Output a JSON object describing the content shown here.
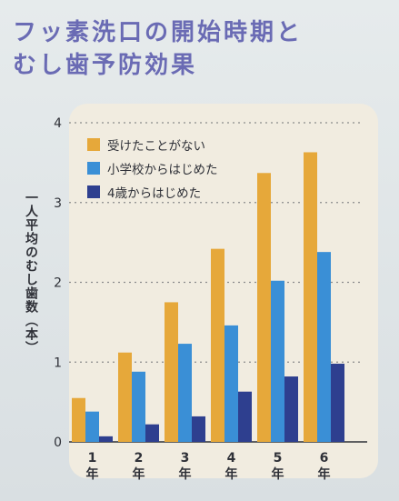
{
  "title": {
    "line1": "フッ素洗口の開始時期と",
    "line2": "むし歯予防効果"
  },
  "chart_data": {
    "type": "bar",
    "ylabel": "一人平均のむし歯数（本）",
    "categories": [
      "1年",
      "2年",
      "3年",
      "4年",
      "5年",
      "6年"
    ],
    "category_numbers": [
      "1",
      "2",
      "3",
      "4",
      "5",
      "6"
    ],
    "category_suffix": "年",
    "ylim": [
      0,
      4
    ],
    "yticks": [
      0,
      1,
      2,
      3,
      4
    ],
    "grid": true,
    "legend_position": "top-left",
    "series": [
      {
        "name": "受けたことがない",
        "color": "#e6a83a",
        "values": [
          0.55,
          1.12,
          1.75,
          2.42,
          3.37,
          3.63
        ]
      },
      {
        "name": "小学校からはじめた",
        "color": "#3a8fd6",
        "values": [
          0.38,
          0.88,
          1.23,
          1.46,
          2.02,
          2.38
        ]
      },
      {
        "name": "4歳からはじめた",
        "color": "#2e3f8f",
        "values": [
          0.07,
          0.22,
          0.32,
          0.63,
          0.82,
          0.98
        ]
      }
    ]
  }
}
